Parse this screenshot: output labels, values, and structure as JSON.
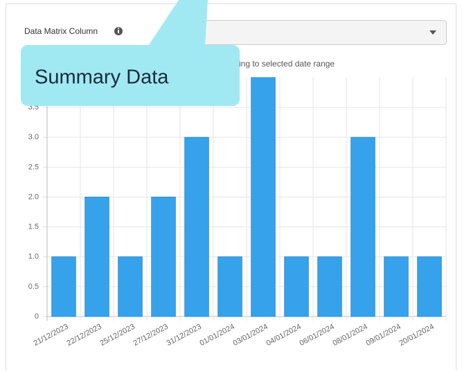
{
  "form": {
    "label": "Data Matrix Column"
  },
  "callout": {
    "text": "Summary Data"
  },
  "chart_data": {
    "type": "bar",
    "title": "ing to selected date range",
    "categories": [
      "21/12/2023",
      "22/12/2023",
      "25/12/2023",
      "27/12/2023",
      "31/12/2023",
      "01/01/2024",
      "03/01/2024",
      "04/01/2024",
      "06/01/2024",
      "08/01/2024",
      "09/01/2024",
      "20/01/2024"
    ],
    "values": [
      1,
      2,
      1,
      2,
      3,
      1,
      4,
      1,
      1,
      3,
      1,
      1
    ],
    "color": "#36a2eb",
    "ylim": [
      0,
      4
    ],
    "yticks": [
      0,
      0.5,
      {
        "value": 1,
        "label": "1.0"
      },
      1.5,
      {
        "value": 2,
        "label": "2.0"
      },
      2.5,
      {
        "value": 3,
        "label": "3.0"
      },
      3.5
    ],
    "grid": true
  }
}
